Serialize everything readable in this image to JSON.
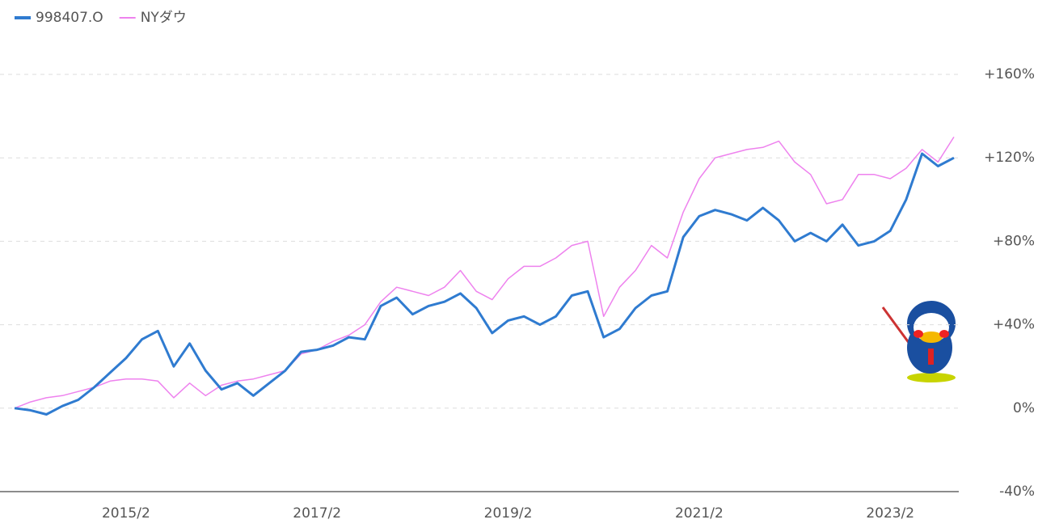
{
  "chart_data": {
    "type": "line",
    "categories": [
      null,
      null,
      null,
      null,
      null,
      null,
      null,
      "2015/2",
      null,
      null,
      null,
      null,
      null,
      null,
      null,
      null,
      null,
      null,
      null,
      "2017/2",
      null,
      null,
      null,
      null,
      null,
      null,
      null,
      null,
      null,
      null,
      null,
      "2019/2",
      null,
      null,
      null,
      null,
      null,
      null,
      null,
      null,
      null,
      null,
      null,
      "2021/2",
      null,
      null,
      null,
      null,
      null,
      null,
      null,
      null,
      null,
      null,
      null,
      "2023/2",
      null,
      null,
      null,
      null
    ],
    "series": [
      {
        "name": "998407.O",
        "color": "#2f7bd0",
        "values": [
          0,
          -1,
          -3,
          1,
          4,
          10,
          17,
          24,
          33,
          37,
          20,
          31,
          18,
          9,
          12,
          6,
          12,
          18,
          27,
          28,
          30,
          34,
          33,
          49,
          53,
          45,
          49,
          51,
          55,
          48,
          36,
          42,
          44,
          40,
          44,
          54,
          56,
          34,
          38,
          48,
          54,
          56,
          82,
          92,
          95,
          93,
          90,
          96,
          90,
          80,
          84,
          80,
          88,
          78,
          80,
          85,
          100,
          122,
          116,
          120
        ]
      },
      {
        "name": "NYダウ",
        "color": "#ee82ee",
        "values": [
          0,
          3,
          5,
          6,
          8,
          10,
          13,
          14,
          14,
          13,
          5,
          12,
          6,
          11,
          13,
          14,
          16,
          18,
          26,
          28,
          32,
          35,
          40,
          51,
          58,
          56,
          54,
          58,
          66,
          56,
          52,
          62,
          68,
          68,
          72,
          78,
          80,
          44,
          58,
          66,
          78,
          72,
          94,
          110,
          120,
          122,
          124,
          125,
          128,
          118,
          112,
          98,
          100,
          112,
          112,
          110,
          115,
          124,
          118,
          130
        ]
      }
    ],
    "ylim": [
      -40,
      160
    ],
    "yticks": [
      {
        "value": -40,
        "label": "-40%"
      },
      {
        "value": 0,
        "label": "0%"
      },
      {
        "value": 40,
        "label": "+40%"
      },
      {
        "value": 80,
        "label": "+80%"
      },
      {
        "value": 120,
        "label": "+120%"
      },
      {
        "value": 160,
        "label": "+160%"
      }
    ],
    "grid": true,
    "legend": "top-left"
  }
}
